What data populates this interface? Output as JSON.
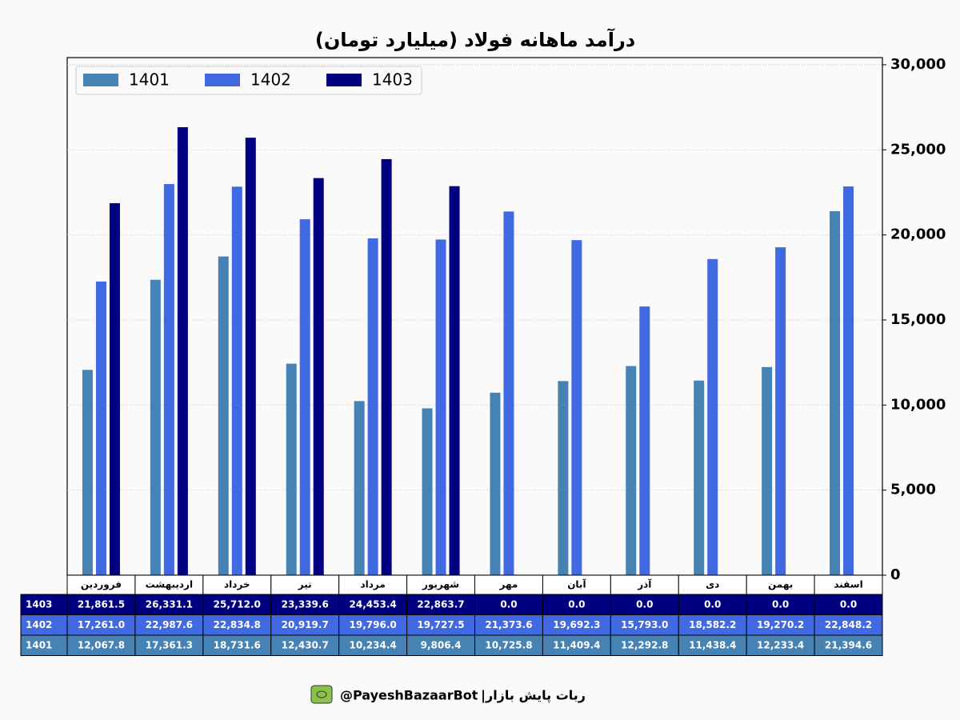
{
  "chart_data": {
    "type": "bar",
    "title": "درآمد ماهانه فولاد (میلیارد تومان)",
    "categories": [
      "فروردین",
      "اردیبهشت",
      "خرداد",
      "تیر",
      "مرداد",
      "شهریور",
      "مهر",
      "آبان",
      "آذر",
      "دی",
      "بهمن",
      "اسفند"
    ],
    "series": [
      {
        "name": "1401",
        "color": "#4682b4",
        "values": [
          12067.8,
          17361.3,
          18731.6,
          12430.7,
          10234.4,
          9806.4,
          10725.8,
          11409.4,
          12292.8,
          11438.4,
          12233.4,
          21394.6
        ],
        "value_labels": [
          "12,067.8",
          "17,361.3",
          "18,731.6",
          "12,430.7",
          "10,234.4",
          "9,806.4",
          "10,725.8",
          "11,409.4",
          "12,292.8",
          "11,438.4",
          "12,233.4",
          "21,394.6"
        ]
      },
      {
        "name": "1402",
        "color": "#4169e1",
        "values": [
          17261.0,
          22987.6,
          22834.8,
          20919.7,
          19796.0,
          19727.5,
          21373.6,
          19692.3,
          15793.0,
          18582.2,
          19270.2,
          22848.2
        ],
        "value_labels": [
          "17,261.0",
          "22,987.6",
          "22,834.8",
          "20,919.7",
          "19,796.0",
          "19,727.5",
          "21,373.6",
          "19,692.3",
          "15,793.0",
          "18,582.2",
          "19,270.2",
          "22,848.2"
        ]
      },
      {
        "name": "1403",
        "color": "#000080",
        "values": [
          21861.5,
          26331.1,
          25712.0,
          23339.6,
          24453.4,
          22863.7,
          0,
          0,
          0,
          0,
          0,
          0
        ],
        "value_labels": [
          "21,861.5",
          "26,331.1",
          "25,712.0",
          "23,339.6",
          "24,453.4",
          "22,863.7",
          "0.0",
          "0.0",
          "0.0",
          "0.0",
          "0.0",
          "0.0"
        ]
      }
    ],
    "ylim": [
      0,
      30420
    ],
    "yticks": [
      0,
      {
        "value": 5000,
        "label": "5,000"
      },
      {
        "value": 10000,
        "label": "10,000"
      },
      {
        "value": 15000,
        "label": "15,000"
      },
      {
        "value": 20000,
        "label": "20,000"
      },
      {
        "value": 25000,
        "label": "25,000"
      },
      {
        "value": 30000,
        "label": "30,000"
      }
    ],
    "grid": true,
    "legend": "upper left"
  },
  "footer": {
    "brand": "ربات پایش بازار",
    "separator": "|",
    "handle": "@PayeshBazaarBot"
  }
}
